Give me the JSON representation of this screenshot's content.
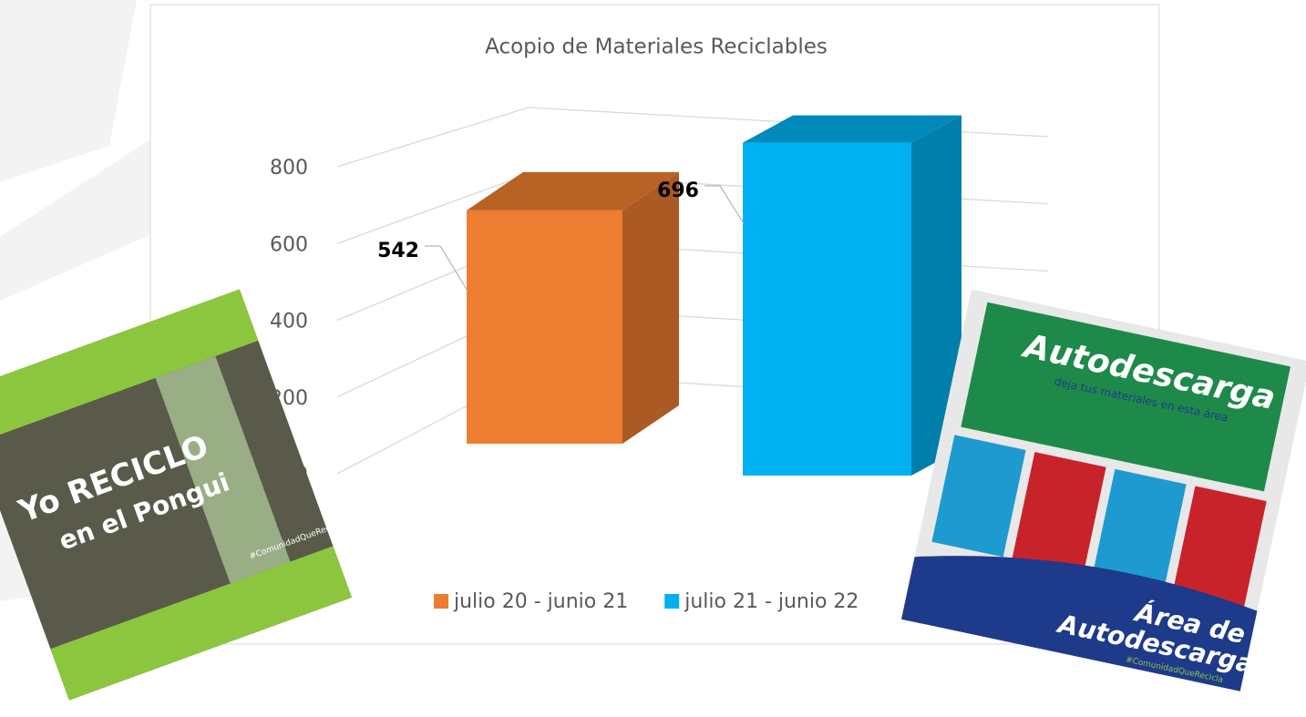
{
  "chart_data": {
    "type": "bar3d",
    "title": "Acopio de Materiales Reciclables",
    "series": [
      {
        "name": "julio 20 - junio 21",
        "color": "#ED7D31",
        "values": [
          542
        ]
      },
      {
        "name": "julio 21 - junio 22",
        "color": "#00B0F0",
        "values": [
          696
        ]
      }
    ],
    "ylim": [
      0,
      800
    ],
    "yticks": [
      0,
      200,
      400,
      600,
      800
    ],
    "grid": true,
    "legend": "bottom"
  },
  "photos": [
    {
      "texts": [
        "Yo RECICLO",
        "en el Pongui",
        "#ComunidadQueRecicla"
      ]
    },
    {
      "texts": [
        "Autodescarga",
        "deja tus materiales en esta área",
        "Área de",
        "Autodescarga",
        "#ComunidadQueRecicla"
      ]
    }
  ]
}
